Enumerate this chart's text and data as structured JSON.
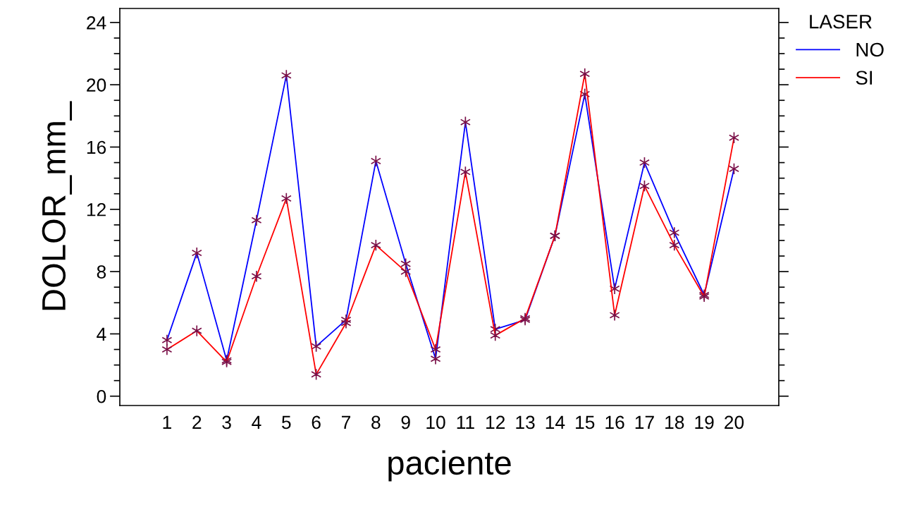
{
  "chart_data": {
    "type": "line",
    "xlabel": "paciente",
    "ylabel": "DOLOR_mm_",
    "legend_title": "LASER",
    "legend": "top right",
    "marker": "cross",
    "line_style": "solid",
    "grid": false,
    "categories": [
      "1",
      "2",
      "3",
      "4",
      "5",
      "6",
      "7",
      "8",
      "9",
      "10",
      "11",
      "12",
      "13",
      "14",
      "15",
      "16",
      "17",
      "18",
      "19",
      "20"
    ],
    "ylim": [
      -0.6,
      24.9
    ],
    "yticks": [
      0,
      4,
      8,
      12,
      16,
      20,
      24
    ],
    "series": [
      {
        "name": "NO",
        "color": "#0000ff",
        "values": [
          3.6,
          9.2,
          2.3,
          11.3,
          20.6,
          3.2,
          4.9,
          15.1,
          8.5,
          2.4,
          17.6,
          4.3,
          4.9,
          10.3,
          19.4,
          6.9,
          15.0,
          10.5,
          6.5,
          14.6
        ]
      },
      {
        "name": "SI",
        "color": "#ff0000",
        "values": [
          3.0,
          4.2,
          2.2,
          7.7,
          12.7,
          1.4,
          4.7,
          9.7,
          8.0,
          3.0,
          14.4,
          3.9,
          5.0,
          10.3,
          20.7,
          5.2,
          13.5,
          9.7,
          6.4,
          16.6
        ]
      }
    ]
  }
}
